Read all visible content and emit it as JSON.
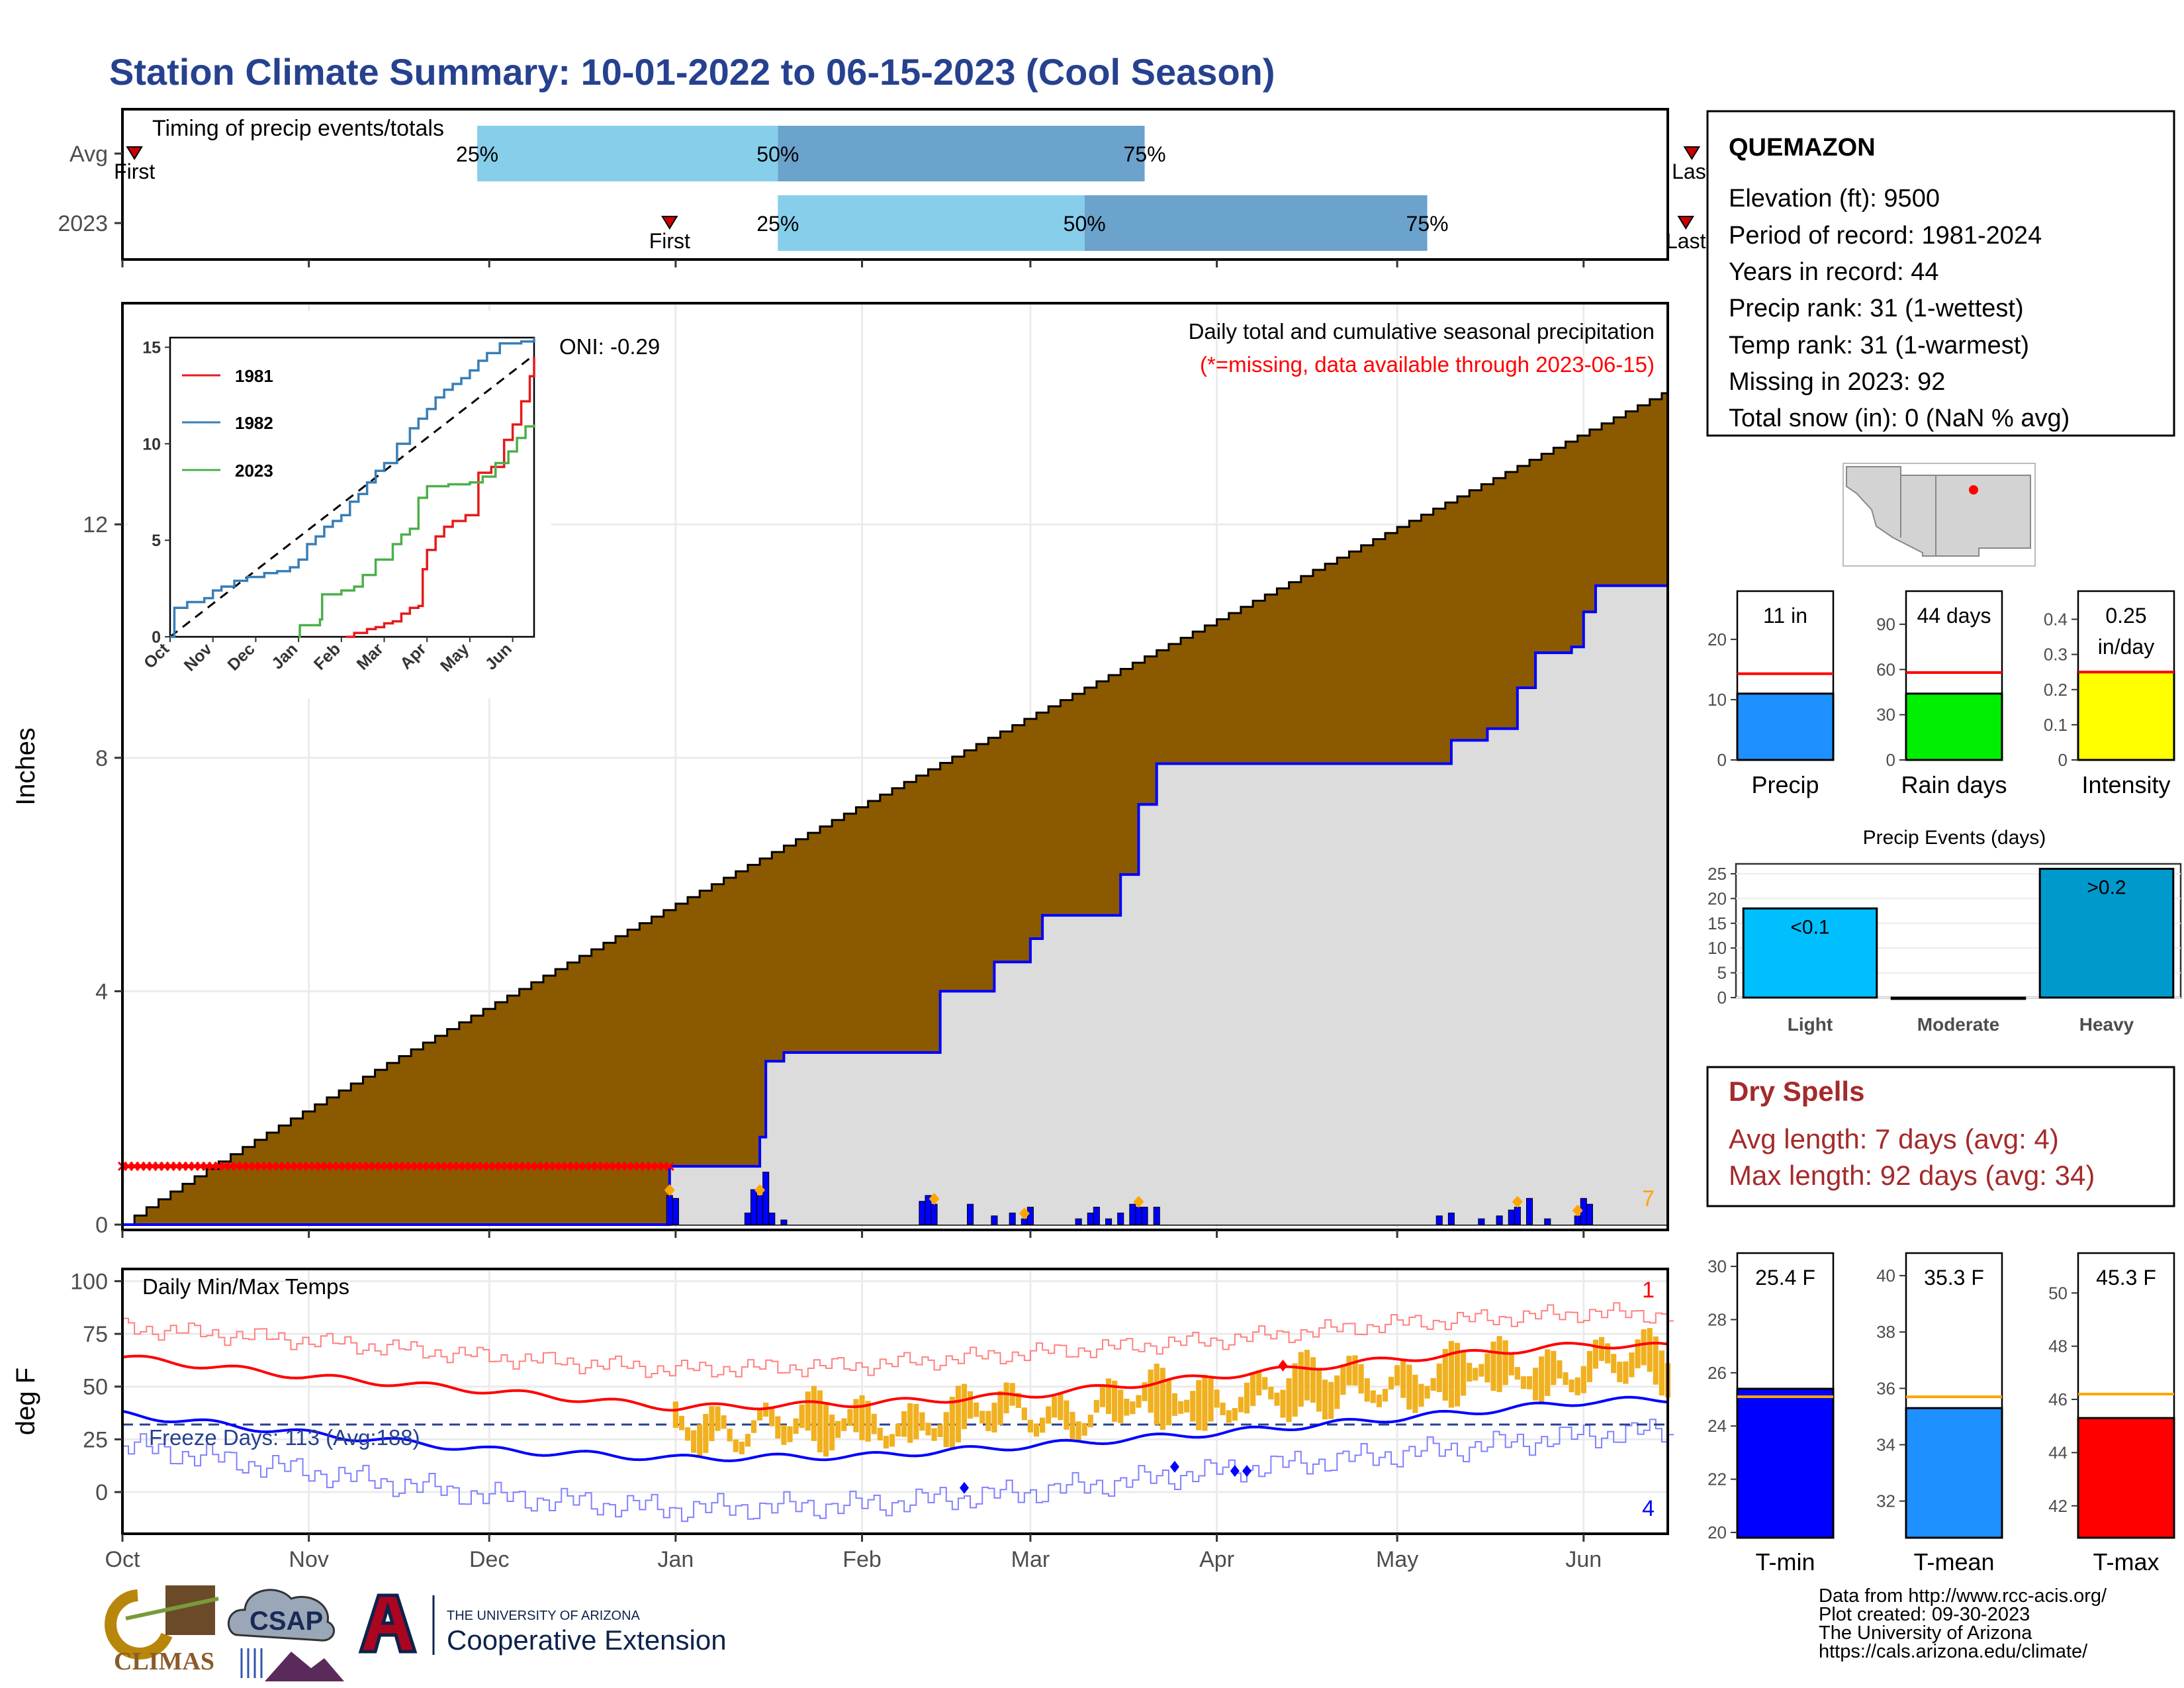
{
  "title": "Station Climate Summary: 10-01-2022 to 06-15-2023 (Cool Season)",
  "timing": {
    "title": "Timing of precip events/totals",
    "rows": [
      {
        "name": "Avg",
        "first": "2022-10-03",
        "p25": "2022-11-29",
        "p50": "2023-01-18",
        "p75": "2023-03-20",
        "last": "2023-06-19"
      },
      {
        "name": "2023",
        "first": "2022-12-31",
        "p25": "2023-01-18",
        "p50": "2023-03-10",
        "p75": "2023-05-06",
        "last": "2023-06-18"
      }
    ],
    "first_label": "First",
    "last_label": "Last",
    "pct_labels": [
      "25%",
      "50%",
      "75%"
    ]
  },
  "station": {
    "name": "QUEMAZON",
    "lines": [
      "Elevation (ft): 9500",
      "Period of record: 1981-2024",
      "Years in record: 44",
      "Precip rank: 31 (1-wettest)",
      "Temp rank: 31 (1-warmest)",
      "Missing in 2023: 92",
      "Total snow (in): 0 (NaN % avg)"
    ]
  },
  "precip_main": {
    "ylabel": "Inches",
    "yticks": [
      0,
      4,
      8,
      12
    ],
    "ylim": [
      0,
      15.7
    ],
    "heading": "Daily total and cumulative seasonal precipitation",
    "note": "(*=missing, data available through 2023-06-15)",
    "oni": "ONI: -0.29",
    "count_label": "7",
    "date_start": "2022-10-01",
    "date_end": "2023-06-15",
    "avg_cumulative_end": 14.3,
    "missing_through": "2022-12-31",
    "missing_marker_value": 1.0,
    "cumulative_2023": [
      [
        "2022-10-01",
        0
      ],
      [
        "2022-12-31",
        1.0
      ],
      [
        "2023-01-14",
        1.0
      ],
      [
        "2023-01-15",
        1.5
      ],
      [
        "2023-01-16",
        2.8
      ],
      [
        "2023-01-19",
        2.95
      ],
      [
        "2023-02-12",
        2.95
      ],
      [
        "2023-02-14",
        4.0
      ],
      [
        "2023-02-23",
        4.5
      ],
      [
        "2023-03-01",
        4.9
      ],
      [
        "2023-03-03",
        5.3
      ],
      [
        "2023-03-12",
        5.3
      ],
      [
        "2023-03-16",
        6.0
      ],
      [
        "2023-03-19",
        7.2
      ],
      [
        "2023-03-22",
        7.9
      ],
      [
        "2023-05-08",
        7.9
      ],
      [
        "2023-05-10",
        8.3
      ],
      [
        "2023-05-16",
        8.5
      ],
      [
        "2023-05-21",
        9.2
      ],
      [
        "2023-05-24",
        9.8
      ],
      [
        "2023-05-30",
        9.9
      ],
      [
        "2023-06-01",
        10.5
      ],
      [
        "2023-06-03",
        10.95
      ],
      [
        "2023-06-15",
        10.95
      ]
    ],
    "daily_bars": [
      [
        "2022-12-31",
        0.5
      ],
      [
        "2023-01-01",
        0.45
      ],
      [
        "2023-01-13",
        0.2
      ],
      [
        "2023-01-14",
        0.6
      ],
      [
        "2023-01-15",
        0.5
      ],
      [
        "2023-01-16",
        0.9
      ],
      [
        "2023-01-17",
        0.2
      ],
      [
        "2023-01-19",
        0.08
      ],
      [
        "2023-02-11",
        0.4
      ],
      [
        "2023-02-12",
        0.5
      ],
      [
        "2023-02-13",
        0.35
      ],
      [
        "2023-02-19",
        0.35
      ],
      [
        "2023-02-23",
        0.15
      ],
      [
        "2023-02-26",
        0.2
      ],
      [
        "2023-02-28",
        0.1
      ],
      [
        "2023-03-01",
        0.3
      ],
      [
        "2023-03-09",
        0.1
      ],
      [
        "2023-03-11",
        0.2
      ],
      [
        "2023-03-12",
        0.3
      ],
      [
        "2023-03-14",
        0.1
      ],
      [
        "2023-03-16",
        0.2
      ],
      [
        "2023-03-18",
        0.35
      ],
      [
        "2023-03-19",
        0.3
      ],
      [
        "2023-03-20",
        0.3
      ],
      [
        "2023-03-22",
        0.3
      ],
      [
        "2023-05-08",
        0.15
      ],
      [
        "2023-05-10",
        0.2
      ],
      [
        "2023-05-15",
        0.1
      ],
      [
        "2023-05-18",
        0.15
      ],
      [
        "2023-05-20",
        0.25
      ],
      [
        "2023-05-21",
        0.3
      ],
      [
        "2023-05-23",
        0.45
      ],
      [
        "2023-05-26",
        0.1
      ],
      [
        "2023-05-31",
        0.15
      ],
      [
        "2023-06-01",
        0.45
      ],
      [
        "2023-06-02",
        0.35
      ]
    ],
    "marker_dates": [
      "2022-12-31",
      "2023-01-15",
      "2023-02-13",
      "2023-02-28",
      "2023-03-19",
      "2023-05-21",
      "2023-05-31"
    ],
    "xticks": [
      "Oct",
      "Nov",
      "Dec",
      "Jan",
      "Feb",
      "Mar",
      "Apr",
      "May",
      "Jun"
    ],
    "xtick_dates": [
      "2022-10-01",
      "2022-11-01",
      "2022-12-01",
      "2023-01-01",
      "2023-02-01",
      "2023-03-01",
      "2023-04-01",
      "2023-05-01",
      "2023-06-01"
    ]
  },
  "inset": {
    "yticks": [
      0,
      5,
      10,
      15
    ],
    "ylim": [
      0,
      15.5
    ],
    "xticks": [
      "Oct",
      "Nov",
      "Dec",
      "Jan",
      "Feb",
      "Mar",
      "Apr",
      "May",
      "Jun"
    ],
    "months_end": 8.5,
    "series": [
      {
        "name": "1981",
        "color": "#e41a1c",
        "points": [
          [
            4.1,
            0
          ],
          [
            4.3,
            0.2
          ],
          [
            4.6,
            0.4
          ],
          [
            4.8,
            0.5
          ],
          [
            5.0,
            0.7
          ],
          [
            5.2,
            0.8
          ],
          [
            5.4,
            1.2
          ],
          [
            5.6,
            1.5
          ],
          [
            5.8,
            1.6
          ],
          [
            5.9,
            3.5
          ],
          [
            6.0,
            4.5
          ],
          [
            6.2,
            5.2
          ],
          [
            6.4,
            5.7
          ],
          [
            6.6,
            6.0
          ],
          [
            6.9,
            6.3
          ],
          [
            7.1,
            6.3
          ],
          [
            7.2,
            8.5
          ],
          [
            7.5,
            8.8
          ],
          [
            7.8,
            10.2
          ],
          [
            8.0,
            11.0
          ],
          [
            8.2,
            12.2
          ],
          [
            8.4,
            13.5
          ],
          [
            8.5,
            14.5
          ]
        ]
      },
      {
        "name": "1982",
        "color": "#377eb8",
        "points": [
          [
            0,
            0
          ],
          [
            0.1,
            1.5
          ],
          [
            0.4,
            1.8
          ],
          [
            0.8,
            2.0
          ],
          [
            1.0,
            2.4
          ],
          [
            1.2,
            2.6
          ],
          [
            1.5,
            2.9
          ],
          [
            1.8,
            3.1
          ],
          [
            2.2,
            3.3
          ],
          [
            2.5,
            3.4
          ],
          [
            2.8,
            3.6
          ],
          [
            3.0,
            4.0
          ],
          [
            3.2,
            4.8
          ],
          [
            3.4,
            5.2
          ],
          [
            3.6,
            5.7
          ],
          [
            3.8,
            6.0
          ],
          [
            4.0,
            6.3
          ],
          [
            4.2,
            7.0
          ],
          [
            4.4,
            7.4
          ],
          [
            4.6,
            8.0
          ],
          [
            4.8,
            8.6
          ],
          [
            5.0,
            9.0
          ],
          [
            5.3,
            10.0
          ],
          [
            5.6,
            10.8
          ],
          [
            5.8,
            11.3
          ],
          [
            6.0,
            11.8
          ],
          [
            6.2,
            12.4
          ],
          [
            6.4,
            12.8
          ],
          [
            6.6,
            13.1
          ],
          [
            6.8,
            13.4
          ],
          [
            7.0,
            13.8
          ],
          [
            7.2,
            14.3
          ],
          [
            7.4,
            14.7
          ],
          [
            7.7,
            15.2
          ],
          [
            8.0,
            15.2
          ],
          [
            8.2,
            15.3
          ],
          [
            8.5,
            15.5
          ]
        ]
      },
      {
        "name": "2023",
        "color": "#4daf4a",
        "points": [
          [
            3.0,
            0
          ],
          [
            3.03,
            0.6
          ],
          [
            3.5,
            0.9
          ],
          [
            3.55,
            2.2
          ],
          [
            4.0,
            2.4
          ],
          [
            4.3,
            2.6
          ],
          [
            4.5,
            3.2
          ],
          [
            4.8,
            4.0
          ],
          [
            5.2,
            4.8
          ],
          [
            5.4,
            5.3
          ],
          [
            5.6,
            5.6
          ],
          [
            5.8,
            7.2
          ],
          [
            6.0,
            7.8
          ],
          [
            6.5,
            7.9
          ],
          [
            7.0,
            8.0
          ],
          [
            7.3,
            8.3
          ],
          [
            7.6,
            9.0
          ],
          [
            7.9,
            9.6
          ],
          [
            8.1,
            10.3
          ],
          [
            8.3,
            10.9
          ],
          [
            8.5,
            11.0
          ]
        ]
      }
    ],
    "avg_line": [
      [
        0,
        0
      ],
      [
        8.5,
        14.6
      ]
    ]
  },
  "gauges_precip": [
    {
      "label": "Precip",
      "value_label": "11 in",
      "value": 11,
      "avg": 14.3,
      "ylim": [
        0,
        28
      ],
      "yticks": [
        0,
        10,
        20
      ],
      "color": "#1e90ff"
    },
    {
      "label": "Rain days",
      "value_label": "44 days",
      "value": 44,
      "avg": 58,
      "ylim": [
        0,
        112
      ],
      "yticks": [
        0,
        30,
        60,
        90
      ],
      "color": "#00ee00"
    },
    {
      "label": "Intensity",
      "value_label": "0.25",
      "value_label2": "in/day",
      "value": 0.25,
      "avg": 0.25,
      "ylim": [
        0,
        0.48
      ],
      "yticks": [
        0.0,
        0.1,
        0.2,
        0.3,
        0.4
      ],
      "color": "#ffff00"
    }
  ],
  "events": {
    "title": "Precip Events (days)",
    "categories": [
      "Light",
      "Moderate",
      "Heavy"
    ],
    "values": [
      18,
      0,
      26
    ],
    "labels": [
      "<0.1",
      "",
      ">0.2"
    ],
    "colors": [
      "#00bfff",
      "#00bfff",
      "#0099cc"
    ],
    "yticks": [
      0,
      5,
      10,
      15,
      20,
      25
    ],
    "ylim": [
      0,
      27
    ]
  },
  "dry_spells": {
    "title": "Dry Spells",
    "lines": [
      "Avg length: 7 days (avg: 4)",
      "Max length: 92 days (avg: 34)"
    ]
  },
  "temps": {
    "ylabel": "deg F",
    "title": "Daily Min/Max Temps",
    "yticks": [
      0,
      25,
      50,
      75,
      100
    ],
    "ylim": [
      -16,
      102
    ],
    "freeze_label": "Freeze Days: 113 (Avg:188)",
    "freeze_line": 32,
    "count_high": "1",
    "count_low": "4",
    "avg_max_pts": [
      [
        0,
        64
      ],
      [
        30,
        55
      ],
      [
        61,
        48
      ],
      [
        92,
        40
      ],
      [
        123,
        42
      ],
      [
        151,
        46
      ],
      [
        182,
        55
      ],
      [
        212,
        63
      ],
      [
        244,
        70
      ],
      [
        257,
        69
      ]
    ],
    "avg_min_pts": [
      [
        0,
        37
      ],
      [
        30,
        28
      ],
      [
        61,
        20
      ],
      [
        92,
        16
      ],
      [
        123,
        17
      ],
      [
        151,
        22
      ],
      [
        182,
        28
      ],
      [
        212,
        35
      ],
      [
        244,
        43
      ],
      [
        257,
        44
      ]
    ],
    "rec_max_pts": [
      [
        0,
        78
      ],
      [
        30,
        72
      ],
      [
        61,
        64
      ],
      [
        92,
        58
      ],
      [
        123,
        60
      ],
      [
        151,
        66
      ],
      [
        182,
        72
      ],
      [
        212,
        80
      ],
      [
        244,
        85
      ],
      [
        257,
        84
      ]
    ],
    "rec_min_pts": [
      [
        0,
        22
      ],
      [
        30,
        10
      ],
      [
        61,
        -2
      ],
      [
        92,
        -8
      ],
      [
        123,
        -6
      ],
      [
        151,
        0
      ],
      [
        182,
        10
      ],
      [
        212,
        18
      ],
      [
        244,
        27
      ],
      [
        257,
        29
      ]
    ],
    "obs_start_day": 92
  },
  "gauges_temp": [
    {
      "label": "T-min",
      "value_label": "25.4 F",
      "value": 25.4,
      "avg": 25.1,
      "ylim": [
        19.8,
        30.5
      ],
      "yticks": [
        20,
        22,
        24,
        26,
        28,
        30
      ],
      "color": "#0000ff"
    },
    {
      "label": "T-mean",
      "value_label": "35.3 F",
      "value": 35.3,
      "avg": 35.7,
      "ylim": [
        30.7,
        40.8
      ],
      "yticks": [
        32,
        34,
        36,
        38,
        40
      ],
      "color": "#1e90ff"
    },
    {
      "label": "T-max",
      "value_label": "45.3 F",
      "value": 45.3,
      "avg": 46.2,
      "ylim": [
        40.8,
        51.5
      ],
      "yticks": [
        42,
        44,
        46,
        48,
        50
      ],
      "color": "#ff0000"
    }
  ],
  "footer": {
    "credits": [
      "Data from http://www.rcc-acis.org/",
      "Plot created: 09-30-2023",
      "The University of Arizona",
      "https://cals.arizona.edu/climate/"
    ],
    "climas": "CLIMAS",
    "csap": "CSAP",
    "ua_small": "THE UNIVERSITY OF ARIZONA",
    "ua_big": "Cooperative Extension"
  },
  "colors": {
    "title": "#26418f",
    "cumulative_fill": "#8b5a00",
    "season_fill": "#dcdcdc",
    "line_2023": "#0000ff",
    "missing": "#ff0000",
    "marker": "#ffa500",
    "light_blue": "#87ceeb",
    "mid_blue": "#6ba3cc",
    "temp_bar": "#f0b020",
    "dry_spell": "#a52a2a"
  }
}
